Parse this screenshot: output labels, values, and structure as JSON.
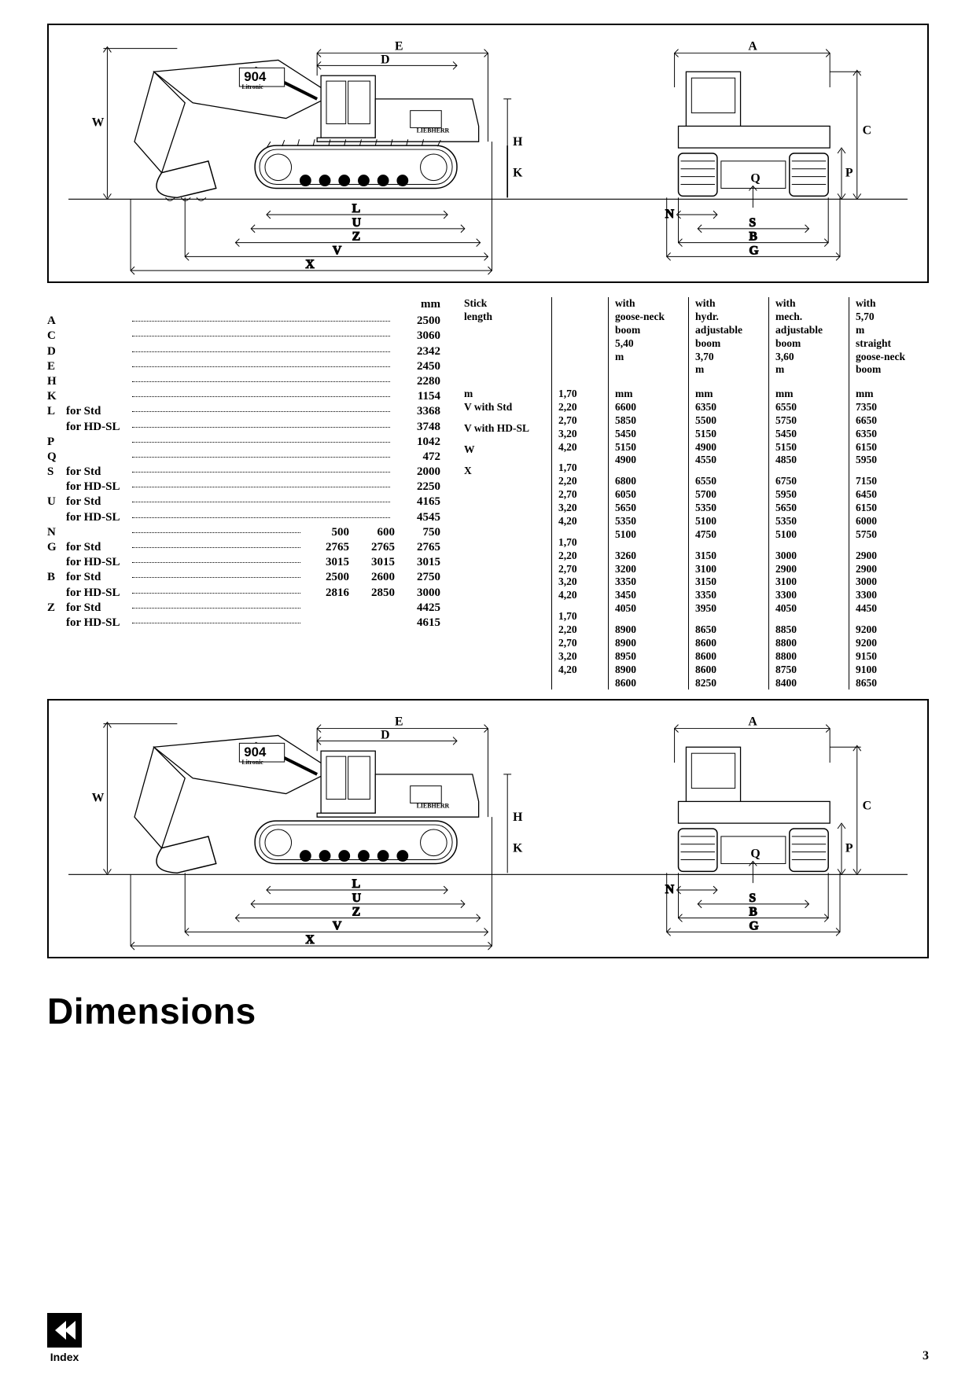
{
  "diagram": {
    "model_number": "904",
    "model_sub": "Litronic",
    "brand": "LIEBHERR",
    "side_labels": [
      "W",
      "D",
      "E",
      "H",
      "K",
      "L",
      "U",
      "Z",
      "V",
      "X"
    ],
    "front_labels": [
      "A",
      "C",
      "P",
      "Q",
      "N",
      "S",
      "B",
      "G"
    ]
  },
  "left_table": {
    "header_single_mm": "mm",
    "header_triple": [
      "500",
      "600",
      "750"
    ],
    "single_rows": [
      {
        "letter": "A",
        "qual": "",
        "val": "2500"
      },
      {
        "letter": "C",
        "qual": "",
        "val": "3060"
      },
      {
        "letter": "D",
        "qual": "",
        "val": "2342"
      },
      {
        "letter": "E",
        "qual": "",
        "val": "2450"
      },
      {
        "letter": "H",
        "qual": "",
        "val": "2280"
      },
      {
        "letter": "K",
        "qual": "",
        "val": "1154"
      },
      {
        "letter": "L",
        "qual": "for Std",
        "val": "3368"
      },
      {
        "letter": "",
        "qual": "for HD-SL",
        "val": "3748"
      },
      {
        "letter": "P",
        "qual": "",
        "val": "1042"
      },
      {
        "letter": "Q",
        "qual": "",
        "val": "472"
      },
      {
        "letter": "S",
        "qual": "for Std",
        "val": "2000"
      },
      {
        "letter": "",
        "qual": "for HD-SL",
        "val": "2250"
      },
      {
        "letter": "U",
        "qual": "for Std",
        "val": "4165"
      },
      {
        "letter": "",
        "qual": "for HD-SL",
        "val": "4545"
      }
    ],
    "triple_rows": [
      {
        "letter": "N",
        "qual": "",
        "v": [
          "500",
          "600",
          "750"
        ]
      },
      {
        "letter": "G",
        "qual": "for Std",
        "v": [
          "2765",
          "2765",
          "2765"
        ]
      },
      {
        "letter": "",
        "qual": "for HD-SL",
        "v": [
          "3015",
          "3015",
          "3015"
        ]
      },
      {
        "letter": "B",
        "qual": "for Std",
        "v": [
          "2500",
          "2600",
          "2750"
        ]
      },
      {
        "letter": "",
        "qual": "for HD-SL",
        "v": [
          "2816",
          "2850",
          "3000"
        ]
      },
      {
        "letter": "Z",
        "qual": "for Std",
        "v": [
          "",
          "",
          "4425"
        ]
      },
      {
        "letter": "",
        "qual": "for HD-SL",
        "v": [
          "",
          "",
          "4615"
        ]
      }
    ]
  },
  "right_table": {
    "row_label_head": "Stick length",
    "row_label_unit": "m",
    "col_heads": [
      "with goose-neck boom 5,40 m",
      "with hydr. adjustable boom 3,70 m",
      "with mech. adjustable boom 3,60 m",
      "with 5,70 m straight goose-neck boom"
    ],
    "col_unit": "mm",
    "sections": [
      {
        "name": "V with Std",
        "sticks": [
          "1,70",
          "2,20",
          "2,70",
          "3,20",
          "4,20"
        ],
        "data": [
          [
            "6600",
            "6350",
            "6550",
            "7350"
          ],
          [
            "5850",
            "5500",
            "5750",
            "6650"
          ],
          [
            "5450",
            "5150",
            "5450",
            "6350"
          ],
          [
            "5150",
            "4900",
            "5150",
            "6150"
          ],
          [
            "4900",
            "4550",
            "4850",
            "5950"
          ]
        ]
      },
      {
        "name": "V with HD-SL",
        "sticks": [
          "1,70",
          "2,20",
          "2,70",
          "3,20",
          "4,20"
        ],
        "data": [
          [
            "6800",
            "6550",
            "6750",
            "7150"
          ],
          [
            "6050",
            "5700",
            "5950",
            "6450"
          ],
          [
            "5650",
            "5350",
            "5650",
            "6150"
          ],
          [
            "5350",
            "5100",
            "5350",
            "6000"
          ],
          [
            "5100",
            "4750",
            "5100",
            "5750"
          ]
        ]
      },
      {
        "name": "W",
        "sticks": [
          "1,70",
          "2,20",
          "2,70",
          "3,20",
          "4,20"
        ],
        "data": [
          [
            "3260",
            "3150",
            "3000",
            "2900"
          ],
          [
            "3200",
            "3100",
            "2900",
            "2900"
          ],
          [
            "3350",
            "3150",
            "3100",
            "3000"
          ],
          [
            "3450",
            "3350",
            "3300",
            "3300"
          ],
          [
            "4050",
            "3950",
            "4050",
            "4450"
          ]
        ]
      },
      {
        "name": "X",
        "sticks": [
          "1,70",
          "2,20",
          "2,70",
          "3,20",
          "4,20"
        ],
        "data": [
          [
            "8900",
            "8650",
            "8850",
            "9200"
          ],
          [
            "8900",
            "8600",
            "8800",
            "9200"
          ],
          [
            "8950",
            "8600",
            "8800",
            "9150"
          ],
          [
            "8900",
            "8600",
            "8750",
            "9100"
          ],
          [
            "8600",
            "8250",
            "8400",
            "8650"
          ]
        ]
      }
    ]
  },
  "title": "Dimensions",
  "index_label": "Index",
  "page_number": "3"
}
